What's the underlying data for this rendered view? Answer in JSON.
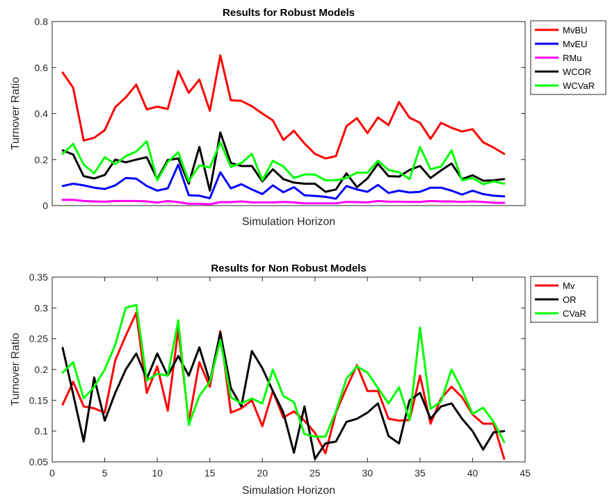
{
  "chart_data": [
    {
      "type": "line",
      "title": "Results for Robust Models",
      "xlabel": "Simulation Horizon",
      "ylabel": "Turnover Ratio",
      "xlim": [
        0,
        45
      ],
      "ylim": [
        0,
        0.8
      ],
      "yticks": [
        "0",
        "0.2",
        "0.4",
        "0.6",
        "0.8"
      ],
      "yticks_values": [
        0,
        0.2,
        0.4,
        0.6,
        0.8
      ],
      "show_xticks": false,
      "legend_position": "outside-right-top",
      "x": [
        1,
        2,
        3,
        4,
        5,
        6,
        7,
        8,
        9,
        10,
        11,
        12,
        13,
        14,
        15,
        16,
        17,
        18,
        19,
        20,
        21,
        22,
        23,
        24,
        25,
        26,
        27,
        28,
        29,
        30,
        31,
        32,
        33,
        34,
        35,
        36,
        37,
        38,
        39,
        40,
        41,
        42,
        43
      ],
      "series": [
        {
          "name": "MvBU",
          "color": "#ff0000",
          "values": [
            0.578,
            0.512,
            0.283,
            0.295,
            0.328,
            0.428,
            0.47,
            0.526,
            0.418,
            0.43,
            0.42,
            0.585,
            0.49,
            0.548,
            0.412,
            0.653,
            0.458,
            0.455,
            0.432,
            0.4,
            0.37,
            0.285,
            0.325,
            0.27,
            0.225,
            0.205,
            0.215,
            0.345,
            0.38,
            0.315,
            0.383,
            0.35,
            0.45,
            0.382,
            0.36,
            0.29,
            0.36,
            0.338,
            0.322,
            0.332,
            0.275,
            0.252,
            0.225
          ]
        },
        {
          "name": "MvEU",
          "color": "#0000ff",
          "values": [
            0.085,
            0.095,
            0.088,
            0.078,
            0.072,
            0.088,
            0.12,
            0.117,
            0.085,
            0.065,
            0.075,
            0.178,
            0.045,
            0.043,
            0.032,
            0.145,
            0.075,
            0.093,
            0.07,
            0.05,
            0.088,
            0.058,
            0.08,
            0.045,
            0.042,
            0.038,
            0.03,
            0.085,
            0.07,
            0.06,
            0.09,
            0.055,
            0.065,
            0.057,
            0.06,
            0.078,
            0.078,
            0.065,
            0.048,
            0.065,
            0.05,
            0.043,
            0.04
          ]
        },
        {
          "name": "RMu",
          "color": "#ff00ff",
          "values": [
            0.025,
            0.025,
            0.02,
            0.018,
            0.017,
            0.02,
            0.02,
            0.02,
            0.018,
            0.013,
            0.02,
            0.015,
            0.008,
            0.008,
            0.006,
            0.015,
            0.015,
            0.018,
            0.014,
            0.014,
            0.014,
            0.016,
            0.014,
            0.01,
            0.01,
            0.01,
            0.01,
            0.016,
            0.015,
            0.014,
            0.02,
            0.017,
            0.017,
            0.016,
            0.016,
            0.02,
            0.018,
            0.018,
            0.016,
            0.018,
            0.016,
            0.012,
            0.012
          ]
        },
        {
          "name": "WCOR",
          "color": "#000000",
          "values": [
            0.24,
            0.222,
            0.128,
            0.118,
            0.133,
            0.2,
            0.188,
            0.2,
            0.21,
            0.115,
            0.198,
            0.205,
            0.095,
            0.255,
            0.065,
            0.318,
            0.185,
            0.172,
            0.172,
            0.105,
            0.158,
            0.115,
            0.1,
            0.095,
            0.095,
            0.06,
            0.07,
            0.14,
            0.08,
            0.118,
            0.182,
            0.128,
            0.126,
            0.155,
            0.172,
            0.12,
            0.153,
            0.183,
            0.115,
            0.132,
            0.108,
            0.11,
            0.115
          ]
        },
        {
          "name": "WCVaR",
          "color": "#00ff00",
          "values": [
            0.225,
            0.268,
            0.178,
            0.14,
            0.21,
            0.18,
            0.215,
            0.235,
            0.28,
            0.11,
            0.19,
            0.232,
            0.105,
            0.175,
            0.165,
            0.275,
            0.168,
            0.185,
            0.225,
            0.11,
            0.195,
            0.17,
            0.12,
            0.135,
            0.135,
            0.11,
            0.11,
            0.12,
            0.143,
            0.143,
            0.195,
            0.155,
            0.145,
            0.115,
            0.255,
            0.158,
            0.17,
            0.24,
            0.11,
            0.12,
            0.093,
            0.105,
            0.095
          ]
        }
      ]
    },
    {
      "type": "line",
      "title": "Results for Non Robust Models",
      "xlabel": "Simulation Horizon",
      "ylabel": "Turnover Ratio",
      "xlim": [
        0,
        45
      ],
      "ylim": [
        0.05,
        0.35
      ],
      "xticks": [
        "0",
        "5",
        "10",
        "15",
        "20",
        "25",
        "30",
        "35",
        "40",
        "45"
      ],
      "xticks_values": [
        0,
        5,
        10,
        15,
        20,
        25,
        30,
        35,
        40,
        45
      ],
      "yticks": [
        "0.05",
        "0.1",
        "0.15",
        "0.2",
        "0.25",
        "0.3",
        "0.35"
      ],
      "yticks_values": [
        0.05,
        0.1,
        0.15,
        0.2,
        0.25,
        0.3,
        0.35
      ],
      "show_xticks": true,
      "legend_position": "outside-right-top",
      "x": [
        1,
        2,
        3,
        4,
        5,
        6,
        7,
        8,
        9,
        10,
        11,
        12,
        13,
        14,
        15,
        16,
        17,
        18,
        19,
        20,
        21,
        22,
        23,
        24,
        25,
        26,
        27,
        28,
        29,
        30,
        31,
        32,
        33,
        34,
        35,
        36,
        37,
        38,
        39,
        40,
        41,
        42,
        43
      ],
      "series": [
        {
          "name": "Mv",
          "color": "#ff0000",
          "values": [
            0.143,
            0.18,
            0.14,
            0.137,
            0.13,
            0.215,
            0.255,
            0.292,
            0.162,
            0.205,
            0.133,
            0.265,
            0.115,
            0.212,
            0.172,
            0.262,
            0.13,
            0.137,
            0.15,
            0.108,
            0.165,
            0.122,
            0.132,
            0.117,
            0.097,
            0.064,
            0.13,
            0.17,
            0.207,
            0.165,
            0.165,
            0.12,
            0.117,
            0.118,
            0.19,
            0.112,
            0.153,
            0.172,
            0.155,
            0.127,
            0.112,
            0.112,
            0.055
          ]
        },
        {
          "name": "OR",
          "color": "#000000",
          "values": [
            0.235,
            0.16,
            0.083,
            0.187,
            0.117,
            0.162,
            0.2,
            0.226,
            0.185,
            0.226,
            0.19,
            0.222,
            0.19,
            0.236,
            0.18,
            0.26,
            0.17,
            0.14,
            0.23,
            0.202,
            0.165,
            0.13,
            0.065,
            0.14,
            0.055,
            0.08,
            0.083,
            0.115,
            0.12,
            0.13,
            0.145,
            0.092,
            0.08,
            0.15,
            0.162,
            0.12,
            0.14,
            0.145,
            0.12,
            0.1,
            0.07,
            0.098,
            0.1
          ]
        },
        {
          "name": "CVaR",
          "color": "#00ff00",
          "values": [
            0.195,
            0.212,
            0.153,
            0.172,
            0.2,
            0.24,
            0.3,
            0.305,
            0.182,
            0.193,
            0.19,
            0.28,
            0.11,
            0.157,
            0.18,
            0.248,
            0.155,
            0.145,
            0.153,
            0.145,
            0.2,
            0.157,
            0.147,
            0.095,
            0.091,
            0.091,
            0.132,
            0.185,
            0.205,
            0.195,
            0.17,
            0.145,
            0.171,
            0.118,
            0.268,
            0.136,
            0.148,
            0.2,
            0.167,
            0.128,
            0.138,
            0.115,
            0.082
          ]
        }
      ]
    }
  ]
}
